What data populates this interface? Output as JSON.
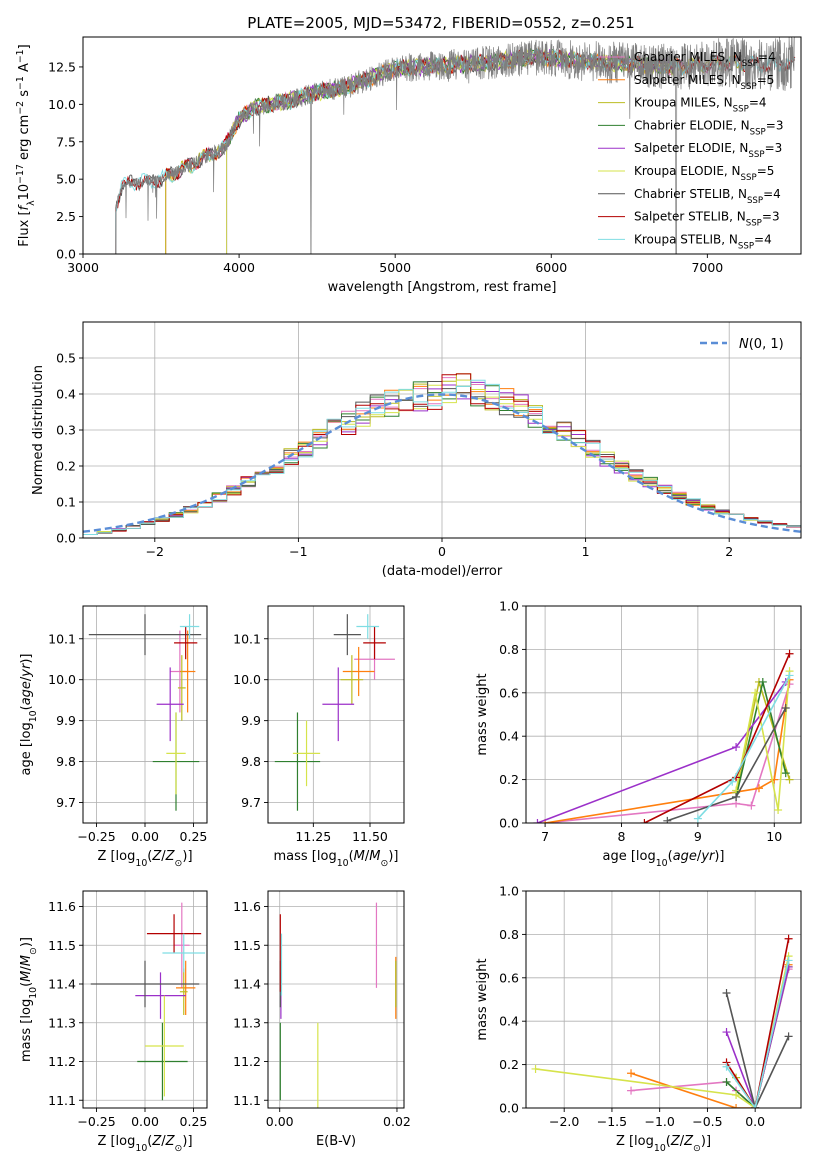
{
  "figure_title": "PLATE=2005, MJD=53472, FIBERID=0552, z=0.251",
  "colors": {
    "Chabrier MILES": "#e377c2",
    "Salpeter MILES": "#ff7f0e",
    "Kroupa MILES": "#bcbd22",
    "Chabrier ELODIE": "#2f7f2f",
    "Salpeter ELODIE": "#9b30c9",
    "Kroupa ELODIE": "#d6e34b",
    "Chabrier STELIB": "#555555",
    "Salpeter STELIB": "#b30000",
    "Kroupa STELIB": "#7fdde3",
    "normal": "#5a8dd6",
    "data": "#7f7f7f"
  },
  "chart_data": [
    {
      "id": "spectrum",
      "type": "line",
      "title": "PLATE=2005, MJD=53472, FIBERID=0552, z=0.251",
      "xlabel": "wavelength [Angstrom, rest frame]",
      "ylabel": "Flux [f_λ 10^-17 erg cm^-2 s^-1 A^-1]",
      "xlim": [
        3000,
        7600
      ],
      "ylim": [
        0,
        14.5
      ],
      "xticks": [
        3000,
        4000,
        5000,
        6000,
        7000
      ],
      "yticks": [
        0.0,
        2.5,
        5.0,
        7.5,
        10.0,
        12.5
      ],
      "legend_position": "top-right",
      "legend": [
        "Chabrier MILES, N_SSP=4",
        "Salpeter MILES, N_SSP=5",
        "Kroupa MILES, N_SSP=4",
        "Chabrier ELODIE, N_SSP=3",
        "Salpeter ELODIE, N_SSP=3",
        "Kroupa ELODIE, N_SSP=5",
        "Chabrier STELIB, N_SSP=4",
        "Salpeter STELIB, N_SSP=3",
        "Kroupa STELIB, N_SSP=4"
      ],
      "model_ranges": [
        [
          3530,
          7230
        ],
        [
          3530,
          7230
        ],
        [
          3530,
          7230
        ],
        [
          3920,
          6790
        ],
        [
          3920,
          6790
        ],
        [
          3920,
          6790
        ],
        [
          3210,
          7560
        ],
        [
          3210,
          7560
        ],
        [
          3210,
          7560
        ]
      ],
      "continuum": {
        "x": [
          3210,
          3250,
          3400,
          3500,
          3600,
          3700,
          3800,
          3900,
          4000,
          4100,
          4300,
          4500,
          4700,
          5000,
          5300,
          5600,
          5900,
          6200,
          6500,
          6800,
          7100,
          7400,
          7560
        ],
        "y": [
          3.2,
          4.6,
          4.9,
          5.0,
          5.5,
          6.0,
          6.6,
          7.0,
          9.0,
          9.8,
          10.2,
          10.8,
          11.2,
          12.4,
          12.6,
          12.8,
          13.2,
          12.9,
          12.7,
          12.5,
          12.8,
          12.6,
          12.8
        ]
      },
      "absorption_lines": [
        {
          "x": 4460,
          "y": 0.0
        },
        {
          "x": 6800,
          "y": 0.0
        }
      ]
    },
    {
      "id": "residuals",
      "type": "line",
      "xlabel": "(data-model)/error",
      "ylabel": "Normed distribution",
      "xlim": [
        -2.5,
        2.5
      ],
      "ylim": [
        0,
        0.6
      ],
      "xticks": [
        -2,
        -1,
        0,
        1,
        2
      ],
      "yticks": [
        0.0,
        0.1,
        0.2,
        0.3,
        0.4,
        0.5
      ],
      "grid": true,
      "legend_position": "top-right",
      "legend": [
        "N(0, 1)"
      ],
      "bin_width": 0.1
    },
    {
      "id": "age_vs_Z",
      "type": "scatter",
      "xlabel": "Z [log10(Z/Z⊙)]",
      "ylabel": "age [log10(age/yr)]",
      "xlim": [
        -0.32,
        0.32
      ],
      "ylim": [
        9.65,
        10.18
      ],
      "xticks": [
        -0.25,
        0.0,
        0.25
      ],
      "yticks": [
        9.7,
        9.8,
        9.9,
        10.0,
        10.1
      ],
      "grid": true,
      "points": [
        {
          "model": "Chabrier MILES",
          "x": 0.18,
          "y": 10.02,
          "xerr": 0.05,
          "yerr": 0.1
        },
        {
          "model": "Salpeter MILES",
          "x": 0.22,
          "y": 10.02,
          "xerr": 0.04,
          "yerr": 0.1
        },
        {
          "model": "Kroupa MILES",
          "x": 0.19,
          "y": 9.98,
          "xerr": 0.02,
          "yerr": 0.08
        },
        {
          "model": "Chabrier ELODIE",
          "x": 0.16,
          "y": 9.8,
          "xerr": 0.12,
          "yerr": 0.12
        },
        {
          "model": "Salpeter ELODIE",
          "x": 0.13,
          "y": 9.94,
          "xerr": 0.07,
          "yerr": 0.09
        },
        {
          "model": "Kroupa ELODIE",
          "x": 0.16,
          "y": 9.82,
          "xerr": 0.05,
          "yerr": 0.1
        },
        {
          "model": "Chabrier STELIB",
          "x": 0.0,
          "y": 10.11,
          "xerr": 0.29,
          "yerr": 0.05
        },
        {
          "model": "Salpeter STELIB",
          "x": 0.21,
          "y": 10.09,
          "xerr": 0.06,
          "yerr": 0.04
        },
        {
          "model": "Kroupa STELIB",
          "x": 0.23,
          "y": 10.13,
          "xerr": 0.05,
          "yerr": 0.03
        }
      ]
    },
    {
      "id": "age_vs_mass",
      "type": "scatter",
      "xlabel": "mass [log10(M/M⊙)]",
      "ylabel": "",
      "xlim": [
        11.05,
        11.65
      ],
      "ylim": [
        9.65,
        10.18
      ],
      "xticks": [
        11.25,
        11.5
      ],
      "yticks": [
        9.7,
        9.8,
        9.9,
        10.0,
        10.1
      ],
      "grid": true,
      "points": [
        {
          "model": "Chabrier MILES",
          "x": 11.52,
          "y": 10.05,
          "xerr": 0.09,
          "yerr": 0.05
        },
        {
          "model": "Salpeter MILES",
          "x": 11.45,
          "y": 10.02,
          "xerr": 0.07,
          "yerr": 0.06
        },
        {
          "model": "Kroupa MILES",
          "x": 11.42,
          "y": 10.0,
          "xerr": 0.05,
          "yerr": 0.06
        },
        {
          "model": "Chabrier ELODIE",
          "x": 11.18,
          "y": 9.8,
          "xerr": 0.1,
          "yerr": 0.12
        },
        {
          "model": "Salpeter ELODIE",
          "x": 11.36,
          "y": 9.94,
          "xerr": 0.07,
          "yerr": 0.09
        },
        {
          "model": "Kroupa ELODIE",
          "x": 11.22,
          "y": 9.82,
          "xerr": 0.06,
          "yerr": 0.08
        },
        {
          "model": "Chabrier STELIB",
          "x": 11.4,
          "y": 10.11,
          "xerr": 0.06,
          "yerr": 0.05
        },
        {
          "model": "Salpeter STELIB",
          "x": 11.52,
          "y": 10.09,
          "xerr": 0.05,
          "yerr": 0.04
        },
        {
          "model": "Kroupa STELIB",
          "x": 11.49,
          "y": 10.13,
          "xerr": 0.05,
          "yerr": 0.03
        }
      ]
    },
    {
      "id": "weight_vs_age",
      "type": "line",
      "xlabel": "age [log10(age/yr)]",
      "ylabel": "mass weight",
      "xlim": [
        6.75,
        10.35
      ],
      "ylim": [
        0,
        1.0
      ],
      "xticks": [
        7,
        8,
        9,
        10
      ],
      "yticks": [
        0.0,
        0.2,
        0.4,
        0.6,
        0.8,
        1.0
      ],
      "grid": true,
      "series": [
        {
          "model": "Chabrier MILES",
          "x": [
            7.0,
            9.5,
            9.7,
            10.2
          ],
          "y": [
            0.0,
            0.09,
            0.08,
            0.64
          ]
        },
        {
          "model": "Salpeter MILES",
          "x": [
            7.0,
            9.8,
            10.0,
            10.2
          ],
          "y": [
            0.0,
            0.16,
            0.2,
            0.66
          ]
        },
        {
          "model": "Kroupa MILES",
          "x": [
            9.5,
            9.8,
            10.2
          ],
          "y": [
            0.14,
            0.65,
            0.2
          ]
        },
        {
          "model": "Chabrier ELODIE",
          "x": [
            9.5,
            9.85,
            10.15
          ],
          "y": [
            0.12,
            0.65,
            0.23
          ]
        },
        {
          "model": "Salpeter ELODIE",
          "x": [
            6.9,
            9.5,
            10.15
          ],
          "y": [
            0.0,
            0.35,
            0.65
          ]
        },
        {
          "model": "Kroupa ELODIE",
          "x": [
            9.5,
            9.75,
            10.05,
            10.2
          ],
          "y": [
            0.15,
            0.6,
            0.06,
            0.7
          ]
        },
        {
          "model": "Chabrier STELIB",
          "x": [
            8.6,
            9.5,
            10.15
          ],
          "y": [
            0.01,
            0.12,
            0.53
          ]
        },
        {
          "model": "Salpeter STELIB",
          "x": [
            8.3,
            9.5,
            10.2
          ],
          "y": [
            0.0,
            0.21,
            0.78
          ]
        },
        {
          "model": "Kroupa STELIB",
          "x": [
            9.0,
            9.45,
            10.2
          ],
          "y": [
            0.02,
            0.19,
            0.68
          ]
        }
      ]
    },
    {
      "id": "mass_vs_Z",
      "type": "scatter",
      "xlabel": "Z [log10(Z/Z⊙)]",
      "ylabel": "mass [log10(M/M⊙)]",
      "xlim": [
        -0.32,
        0.32
      ],
      "ylim": [
        11.08,
        11.64
      ],
      "xticks": [
        -0.25,
        0.0,
        0.25
      ],
      "yticks": [
        11.1,
        11.2,
        11.3,
        11.4,
        11.5,
        11.6
      ],
      "grid": true,
      "points": [
        {
          "model": "Chabrier MILES",
          "x": 0.19,
          "y": 11.5,
          "xerr": 0.04,
          "yerr": 0.11
        },
        {
          "model": "Salpeter MILES",
          "x": 0.21,
          "y": 11.39,
          "xerr": 0.05,
          "yerr": 0.07
        },
        {
          "model": "Kroupa MILES",
          "x": 0.2,
          "y": 11.38,
          "xerr": 0.02,
          "yerr": 0.06
        },
        {
          "model": "Chabrier ELODIE",
          "x": 0.09,
          "y": 11.2,
          "xerr": 0.13,
          "yerr": 0.1
        },
        {
          "model": "Salpeter ELODIE",
          "x": 0.08,
          "y": 11.37,
          "xerr": 0.13,
          "yerr": 0.06
        },
        {
          "model": "Kroupa ELODIE",
          "x": 0.1,
          "y": 11.24,
          "xerr": 0.1,
          "yerr": 0.13
        },
        {
          "model": "Chabrier STELIB",
          "x": 0.0,
          "y": 11.4,
          "xerr": 0.28,
          "yerr": 0.06
        },
        {
          "model": "Salpeter STELIB",
          "x": 0.15,
          "y": 11.53,
          "xerr": 0.14,
          "yerr": 0.05
        },
        {
          "model": "Kroupa STELIB",
          "x": 0.2,
          "y": 11.48,
          "xerr": 0.11,
          "yerr": 0.05
        }
      ]
    },
    {
      "id": "mass_vs_ebv",
      "type": "scatter",
      "xlabel": "E(B-V)",
      "ylabel": "",
      "xlim": [
        -0.002,
        0.0212
      ],
      "ylim": [
        11.08,
        11.64
      ],
      "xticks": [
        0.0,
        0.02
      ],
      "yticks": [
        11.1,
        11.2,
        11.3,
        11.4,
        11.5,
        11.6
      ],
      "grid": true,
      "points": [
        {
          "model": "Chabrier MILES",
          "x": 0.0165,
          "y": 11.5,
          "yerr": 0.11
        },
        {
          "model": "Salpeter MILES",
          "x": 0.0198,
          "y": 11.39,
          "yerr": 0.08
        },
        {
          "model": "Kroupa MILES",
          "x": 0.0198,
          "y": 11.4,
          "yerr": 0.06
        },
        {
          "model": "Chabrier ELODIE",
          "x": 0.0001,
          "y": 11.2,
          "yerr": 0.1
        },
        {
          "model": "Salpeter ELODIE",
          "x": 0.0002,
          "y": 11.37,
          "yerr": 0.06
        },
        {
          "model": "Kroupa ELODIE",
          "x": 0.0065,
          "y": 11.17,
          "yerr": 0.13
        },
        {
          "model": "Chabrier STELIB",
          "x": 0.0001,
          "y": 11.4,
          "yerr": 0.06
        },
        {
          "model": "Salpeter STELIB",
          "x": 0.0001,
          "y": 11.48,
          "yerr": 0.1
        },
        {
          "model": "Kroupa STELIB",
          "x": 0.0003,
          "y": 11.45,
          "yerr": 0.08
        }
      ]
    },
    {
      "id": "weight_vs_Z",
      "type": "line",
      "xlabel": "Z [log10(Z/Z⊙)]",
      "ylabel": "mass weight",
      "xlim": [
        -2.4,
        0.48
      ],
      "ylim": [
        0,
        1.0
      ],
      "xticks": [
        -2.0,
        -1.5,
        -1.0,
        -0.5,
        0.0
      ],
      "yticks": [
        0.0,
        0.2,
        0.4,
        0.6,
        0.8,
        1.0
      ],
      "grid": true,
      "series": [
        {
          "model": "Chabrier MILES",
          "x": [
            -1.3,
            -0.3,
            -0.2,
            0.0,
            0.35
          ],
          "y": [
            0.08,
            0.12,
            0.08,
            0.0,
            0.64
          ]
        },
        {
          "model": "Salpeter MILES",
          "x": [
            -1.3,
            -0.2,
            0.0,
            0.35
          ],
          "y": [
            0.16,
            0.0,
            0.0,
            0.66
          ]
        },
        {
          "model": "Kroupa MILES",
          "x": [
            -0.2,
            0.0,
            0.35
          ],
          "y": [
            0.14,
            0.0,
            0.65
          ]
        },
        {
          "model": "Chabrier ELODIE",
          "x": [
            -0.3,
            0.0,
            0.35
          ],
          "y": [
            0.12,
            0.0,
            0.65
          ]
        },
        {
          "model": "Salpeter ELODIE",
          "x": [
            -0.3,
            0.0,
            0.35
          ],
          "y": [
            0.35,
            0.0,
            0.65
          ]
        },
        {
          "model": "Kroupa ELODIE",
          "x": [
            -2.3,
            -0.2,
            0.0,
            0.35
          ],
          "y": [
            0.18,
            0.06,
            0.0,
            0.7
          ]
        },
        {
          "model": "Chabrier STELIB",
          "x": [
            -0.3,
            0.0,
            0.35
          ],
          "y": [
            0.53,
            0.0,
            0.33
          ]
        },
        {
          "model": "Salpeter STELIB",
          "x": [
            -0.3,
            0.0,
            0.35
          ],
          "y": [
            0.21,
            0.0,
            0.78
          ]
        },
        {
          "model": "Kroupa STELIB",
          "x": [
            -0.3,
            0.0,
            0.35
          ],
          "y": [
            0.19,
            0.0,
            0.68
          ]
        }
      ]
    }
  ]
}
